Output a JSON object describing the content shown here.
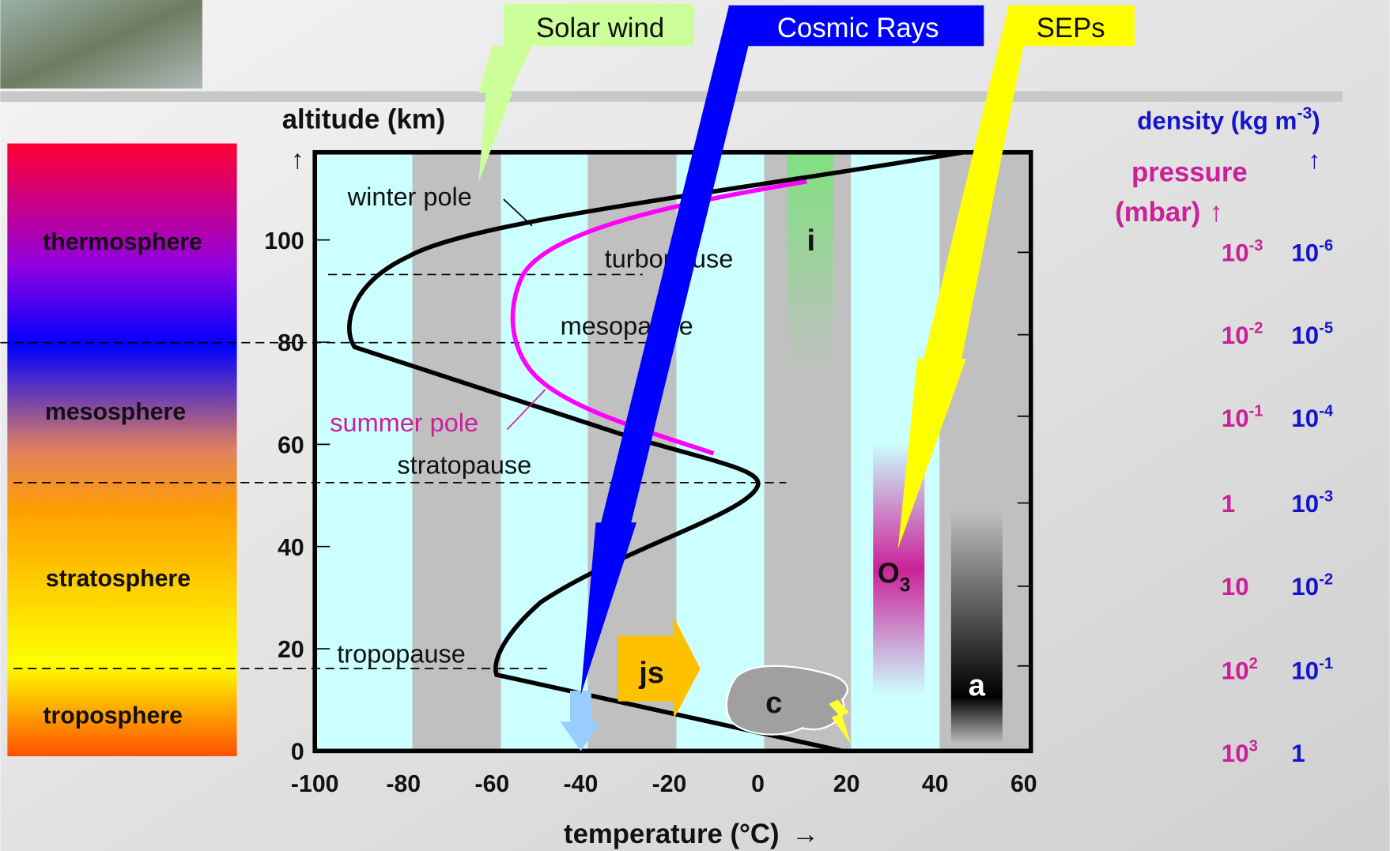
{
  "arrows": {
    "solar_wind": "Solar wind",
    "cosmic_rays": "Cosmic Rays",
    "seps": "SEPs"
  },
  "layers": [
    "thermosphere",
    "mesosphere",
    "stratosphere",
    "troposphere"
  ],
  "y_axis": {
    "label": "altitude (km)",
    "arrow": "↑",
    "ticks": [
      "0",
      "20",
      "40",
      "60",
      "80",
      "100"
    ]
  },
  "x_axis": {
    "label": "temperature (°C)",
    "arrow": "→",
    "ticks": [
      "-100",
      "-80",
      "-60",
      "-40",
      "-20",
      "0",
      "20",
      "40",
      "60"
    ]
  },
  "annotations": {
    "winter_pole": "winter pole",
    "turbopause": "turbopause",
    "mesopause": "mesopause",
    "summer_pole": "summer pole",
    "stratopause": "stratopause",
    "tropopause": "tropopause"
  },
  "markers": {
    "ionosphere": "i",
    "ozone": {
      "base": "O",
      "sub": "3"
    },
    "jet_stream": "js",
    "clouds": "c",
    "aerosols": "a"
  },
  "density": {
    "label": "density (kg m",
    "exp": "-3",
    "close": ")",
    "arrow": "↑"
  },
  "pressure": {
    "label": "pressure",
    "unit": "(mbar)",
    "arrow": "↑"
  },
  "rows": [
    {
      "pressure": {
        "base": "10",
        "exp": "-3"
      },
      "density": {
        "base": "10",
        "exp": "-6"
      }
    },
    {
      "pressure": {
        "base": "10",
        "exp": "-2"
      },
      "density": {
        "base": "10",
        "exp": "-5"
      }
    },
    {
      "pressure": {
        "base": "10",
        "exp": "-1"
      },
      "density": {
        "base": "10",
        "exp": "-4"
      }
    },
    {
      "pressure": {
        "base": "1"
      },
      "density": {
        "base": "10",
        "exp": "-3"
      }
    },
    {
      "pressure": {
        "base": "10"
      },
      "density": {
        "base": "10",
        "exp": "-2"
      }
    },
    {
      "pressure": {
        "base": "10",
        "exp": "2"
      },
      "density": {
        "base": "10",
        "exp": "-1"
      }
    },
    {
      "pressure": {
        "base": "10",
        "exp": "3"
      },
      "density": {
        "base": "1"
      }
    }
  ]
}
